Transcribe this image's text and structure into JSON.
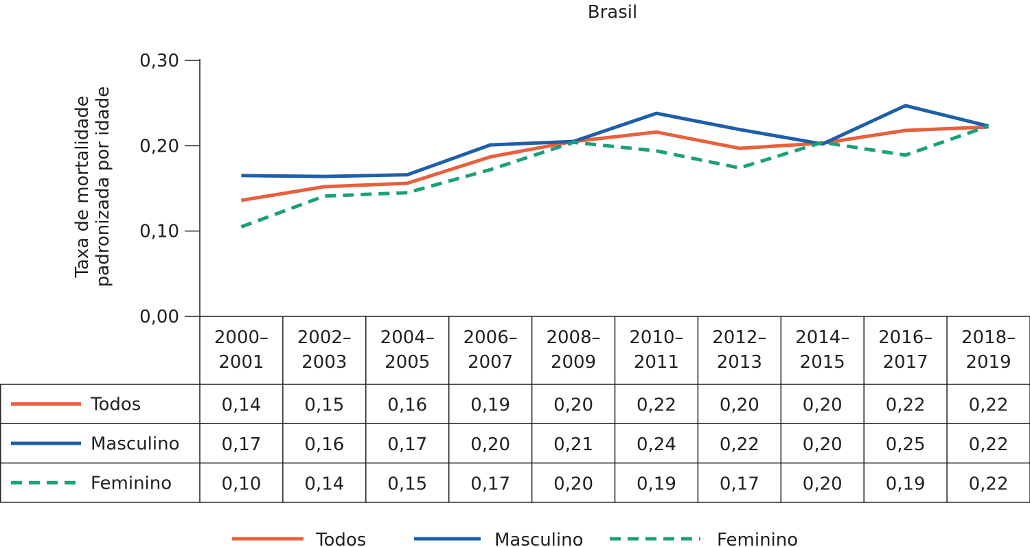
{
  "chart_data": {
    "type": "line",
    "title": "Brasil",
    "ylabel": [
      "Taxa de mortalidade",
      "padronizada por idade"
    ],
    "xlabel": "",
    "ylim": [
      0,
      0.3
    ],
    "yticks": [
      0,
      0.1,
      0.2,
      0.3
    ],
    "ytick_labels": [
      "0,00",
      "0,10",
      "0,20",
      "0,30"
    ],
    "categories": [
      [
        "2000–",
        "2001"
      ],
      [
        "2002–",
        "2003"
      ],
      [
        "2004–",
        "2005"
      ],
      [
        "2006–",
        "2007"
      ],
      [
        "2008–",
        "2009"
      ],
      [
        "2010–",
        "2011"
      ],
      [
        "2012–",
        "2013"
      ],
      [
        "2014–",
        "2015"
      ],
      [
        "2016–",
        "2017"
      ],
      [
        "2018–",
        "2019"
      ]
    ],
    "legend_position": "bottom",
    "grid": false,
    "series": [
      {
        "name": "Todos",
        "color": "#e8603c",
        "dashed": false,
        "values": [
          0.136,
          0.152,
          0.156,
          0.187,
          0.205,
          0.216,
          0.197,
          0.203,
          0.218,
          0.222
        ],
        "table_values": [
          "0,14",
          "0,15",
          "0,16",
          "0,19",
          "0,20",
          "0,22",
          "0,20",
          "0,20",
          "0,22",
          "0,22"
        ]
      },
      {
        "name": "Masculino",
        "color": "#1f5fa8",
        "dashed": false,
        "values": [
          0.165,
          0.164,
          0.166,
          0.201,
          0.205,
          0.238,
          0.219,
          0.202,
          0.247,
          0.223
        ],
        "table_values": [
          "0,17",
          "0,16",
          "0,17",
          "0,20",
          "0,21",
          "0,24",
          "0,22",
          "0,20",
          "0,25",
          "0,22"
        ]
      },
      {
        "name": "Feminino",
        "color": "#1aa07a",
        "dashed": true,
        "values": [
          0.105,
          0.141,
          0.145,
          0.172,
          0.204,
          0.194,
          0.174,
          0.204,
          0.189,
          0.223
        ],
        "table_values": [
          "0,10",
          "0,14",
          "0,15",
          "0,17",
          "0,20",
          "0,19",
          "0,17",
          "0,20",
          "0,19",
          "0,22"
        ]
      }
    ]
  }
}
